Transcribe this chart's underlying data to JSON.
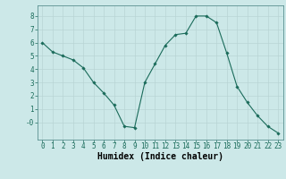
{
  "x": [
    0,
    1,
    2,
    3,
    4,
    5,
    6,
    7,
    8,
    9,
    10,
    11,
    12,
    13,
    14,
    15,
    16,
    17,
    18,
    19,
    20,
    21,
    22,
    23
  ],
  "y": [
    6.0,
    5.3,
    5.0,
    4.7,
    4.1,
    3.0,
    2.2,
    1.3,
    -0.3,
    -0.4,
    3.0,
    4.4,
    5.8,
    6.6,
    6.7,
    8.0,
    8.0,
    7.5,
    5.2,
    2.7,
    1.5,
    0.5,
    -0.3,
    -0.8
  ],
  "line_color": "#1a6b5a",
  "marker": "D",
  "markersize": 1.8,
  "linewidth": 0.8,
  "xlabel": "Humidex (Indice chaleur)",
  "xlabel_fontsize": 7,
  "xlabel_fontweight": "bold",
  "bg_color": "#cce8e8",
  "grid_color": "#b8d4d4",
  "xlim": [
    -0.5,
    23.5
  ],
  "ylim": [
    -1.3,
    8.8
  ],
  "yticks": [
    0,
    1,
    2,
    3,
    4,
    5,
    6,
    7,
    8
  ],
  "ytick_labels": [
    "-0",
    "1",
    "2",
    "3",
    "4",
    "5",
    "6",
    "7",
    "8"
  ],
  "xticks": [
    0,
    1,
    2,
    3,
    4,
    5,
    6,
    7,
    8,
    9,
    10,
    11,
    12,
    13,
    14,
    15,
    16,
    17,
    18,
    19,
    20,
    21,
    22,
    23
  ],
  "tick_fontsize": 5.5,
  "spine_color": "#5a9090"
}
